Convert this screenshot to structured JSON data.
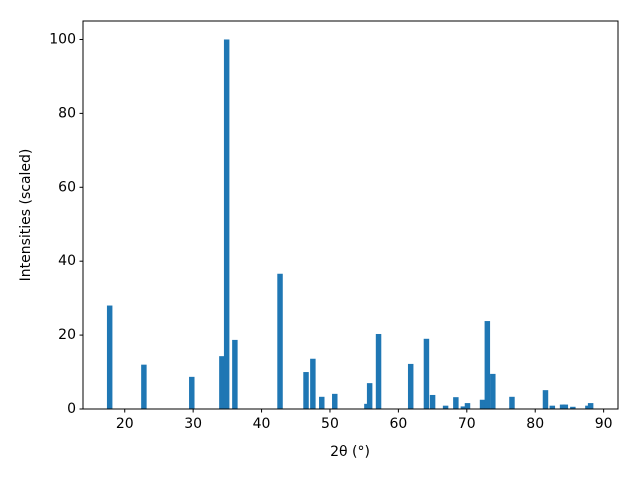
{
  "chart_data": {
    "type": "bar",
    "x": [
      17.8,
      22.8,
      29.8,
      34.2,
      34.9,
      36.1,
      42.7,
      46.5,
      47.5,
      48.8,
      50.7,
      55.4,
      55.8,
      57.1,
      61.8,
      64.1,
      65.0,
      66.9,
      68.4,
      69.5,
      70.1,
      72.3,
      73.0,
      73.8,
      76.6,
      81.5,
      82.5,
      84.0,
      84.4,
      85.5,
      87.7,
      88.1
    ],
    "values": [
      28,
      12,
      8.7,
      14.3,
      100,
      18.7,
      36.6,
      10,
      13.6,
      3.3,
      4.1,
      1.4,
      7,
      20.3,
      12.2,
      19,
      3.8,
      0.9,
      3.2,
      0.7,
      1.6,
      2.5,
      23.8,
      9.5,
      3.3,
      5.1,
      0.9,
      1.2,
      1.2,
      0.6,
      0.9,
      1.6
    ],
    "color": "#1f77b4",
    "xlabel": "2θ (°)",
    "ylabel": "Intensities (scaled)",
    "xlim": [
      13.9,
      92.1
    ],
    "ylim": [
      0,
      105
    ],
    "xticks": [
      20,
      30,
      40,
      50,
      60,
      70,
      80,
      90
    ],
    "yticks": [
      0,
      20,
      40,
      60,
      80,
      100
    ],
    "grid": false
  }
}
